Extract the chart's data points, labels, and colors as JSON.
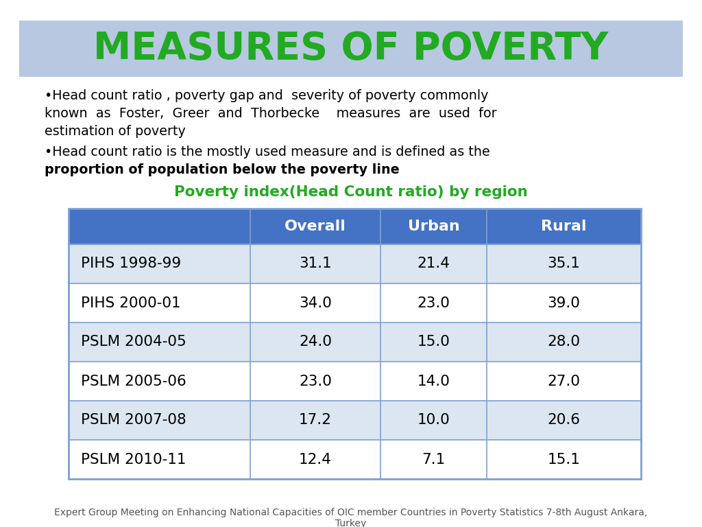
{
  "title": "MEASURES OF POVERTY",
  "title_color": "#22aa22",
  "title_bg_color": "#b8c8e0",
  "bullet1_line1": "•Head count ratio , poverty gap and  severity of poverty commonly",
  "bullet1_line2": "known  as  Foster,  Greer  and  Thorbecke    measures  are  used  for",
  "bullet1_line3": "estimation of poverty",
  "bullet2_line1": "•Head count ratio is the mostly used measure and is defined as the",
  "bullet2_line2": "proportion of population below the poverty line",
  "table_title": "Poverty index(Head Count ratio) by region",
  "table_title_color": "#22aa22",
  "header_bg": "#4472c4",
  "header_text_color": "#ffffff",
  "col_headers": [
    "",
    "Overall",
    "Urban",
    "Rural"
  ],
  "rows": [
    [
      "PIHS 1998-99",
      "31.1",
      "21.4",
      "35.1"
    ],
    [
      "PIHS 2000-01",
      "34.0",
      "23.0",
      "39.0"
    ],
    [
      "PSLM 2004-05",
      "24.0",
      "15.0",
      "28.0"
    ],
    [
      "PSLM 2005-06",
      "23.0",
      "14.0",
      "27.0"
    ],
    [
      "PSLM 2007-08",
      "17.2",
      "10.0",
      "20.6"
    ],
    [
      "PSLM 2010-11",
      "12.4",
      "7.1",
      "15.1"
    ]
  ],
  "row_bg_odd": "#dce6f1",
  "row_bg_even": "#ffffff",
  "footer_line1": "Expert Group Meeting on Enhancing National Capacities of OIC member Countries in Poverty Statistics 7-8th August Ankara,",
  "footer_line2": "Turkey",
  "bg_color": "#ffffff",
  "border_color": "#7f9fd4",
  "text_color": "#000000"
}
